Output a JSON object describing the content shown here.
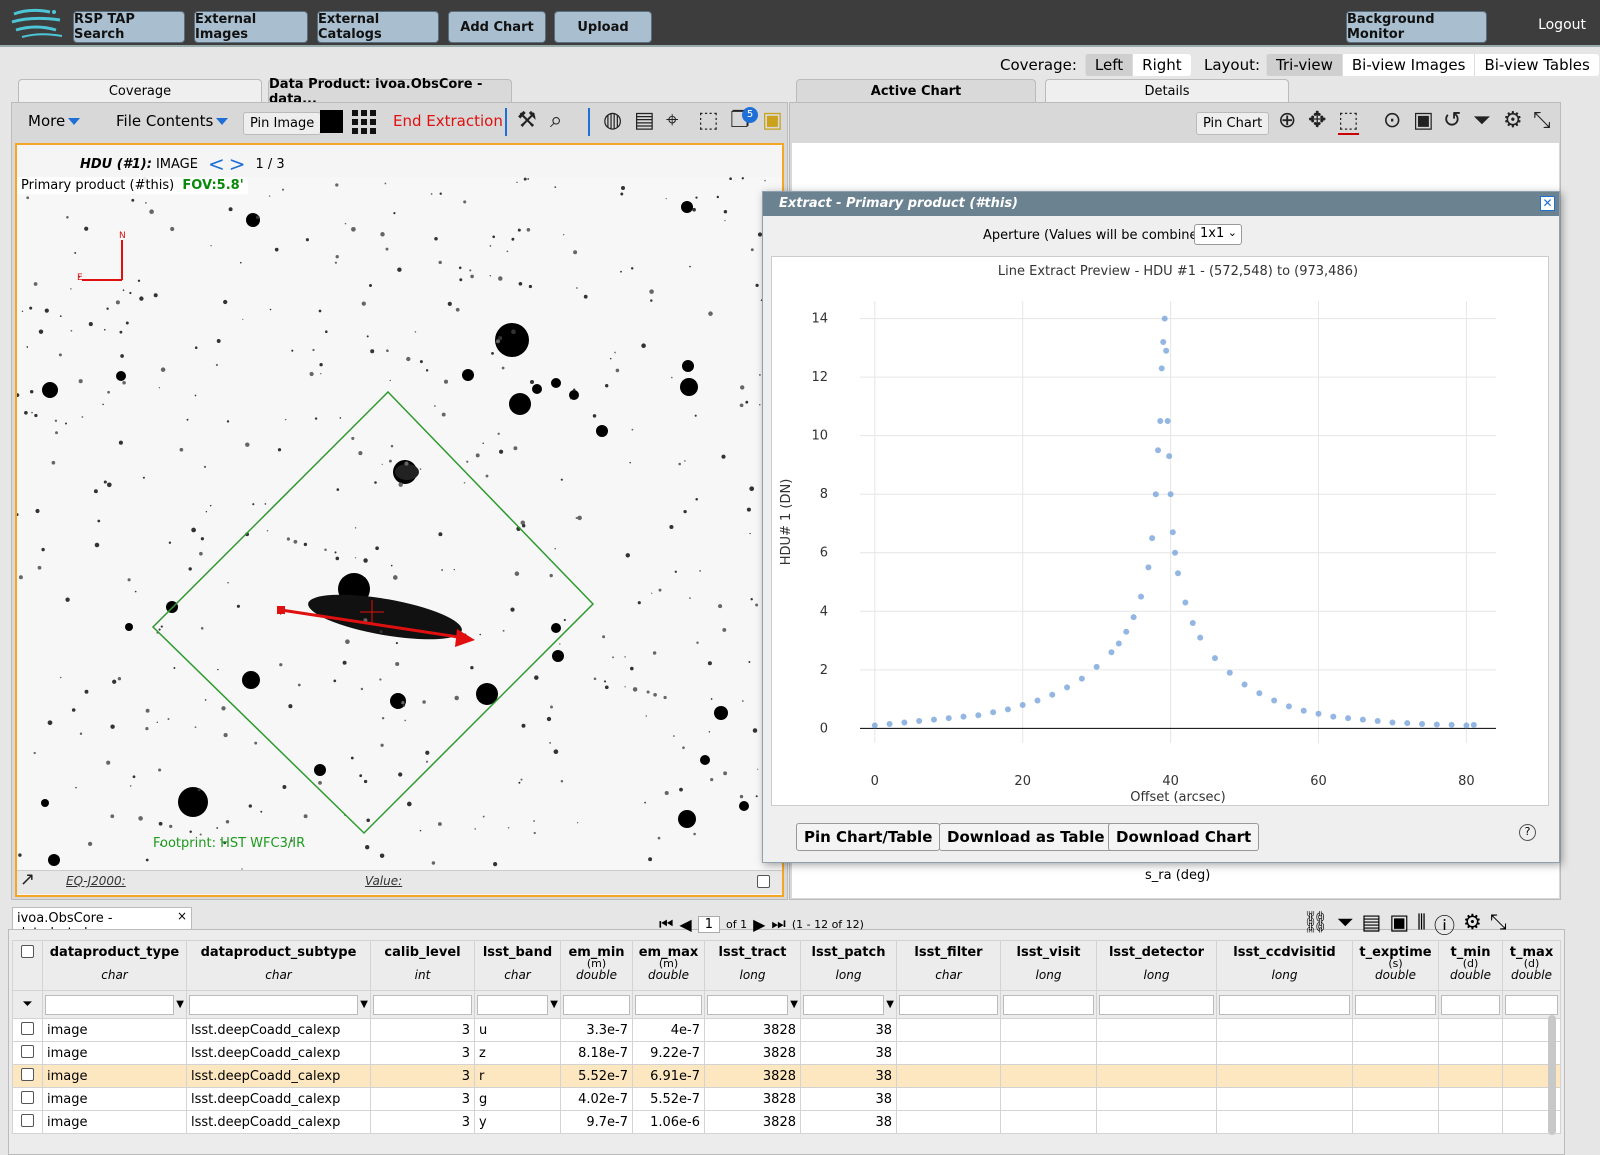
{
  "topnav": {
    "buttons": [
      "RSP TAP Search",
      "External Images",
      "External Catalogs",
      "Add Chart",
      "Upload"
    ],
    "background_monitor": "Background Monitor",
    "logout": "Logout"
  },
  "layout_bar": {
    "coverage_label": "Coverage:",
    "coverage_options": [
      "Left",
      "Right"
    ],
    "coverage_selected": "Left",
    "layout_label": "Layout:",
    "layout_options": [
      "Tri-view",
      "Bi-view Images",
      "Bi-view Tables"
    ],
    "layout_selected": "Tri-view"
  },
  "left_tabs": [
    "Coverage",
    "Data Product: ivoa.ObsCore - data..."
  ],
  "image_toolbar": {
    "more": "More",
    "file_contents": "File Contents",
    "pin_image": "Pin Image",
    "end_extraction": "End Extraction",
    "badge_count": "5"
  },
  "image_viewer": {
    "hdu_label": "HDU (#1):",
    "hdu_type": "IMAGE",
    "page": "1 / 3",
    "product_title": "Primary product (#this)",
    "fov": "FOV:5.8'",
    "compass_n": "N",
    "compass_e": "E",
    "footprint_label": "Footprint: HST WFC3/IR",
    "coord_system": "EQ-J2000:",
    "value_label": "Value:"
  },
  "right_tabs": [
    "Active Chart",
    "Details"
  ],
  "chart_toolbar": {
    "pin_chart": "Pin Chart"
  },
  "bg_axis_label": "s_ra (deg)",
  "extract_dialog": {
    "title": "Extract - Primary product (#this)",
    "aperture_label": "Aperture (Values will be combined)",
    "aperture_value": "1x1",
    "buttons": [
      "Pin Chart/Table",
      "Download as Table",
      "Download Chart"
    ],
    "help": "?"
  },
  "chart_data": {
    "type": "scatter",
    "title": "Line Extract Preview -  HDU #1 - (572,548) to (973,486)",
    "xlabel": "Offset (arcsec)",
    "ylabel": "HDU# 1 (DN)",
    "xlim": [
      -2,
      84
    ],
    "ylim": [
      -0.5,
      14.6
    ],
    "xticks": [
      0,
      20,
      40,
      60,
      80
    ],
    "yticks": [
      0,
      2,
      4,
      6,
      8,
      10,
      12,
      14
    ],
    "grid": true,
    "color": "#6f9fd8",
    "peak_x": 39,
    "peak_y": 14,
    "points": [
      [
        0,
        0.1
      ],
      [
        2,
        0.15
      ],
      [
        4,
        0.2
      ],
      [
        6,
        0.25
      ],
      [
        8,
        0.3
      ],
      [
        10,
        0.35
      ],
      [
        12,
        0.4
      ],
      [
        14,
        0.45
      ],
      [
        16,
        0.55
      ],
      [
        18,
        0.65
      ],
      [
        20,
        0.8
      ],
      [
        22,
        0.95
      ],
      [
        24,
        1.15
      ],
      [
        26,
        1.4
      ],
      [
        28,
        1.7
      ],
      [
        30,
        2.1
      ],
      [
        32,
        2.6
      ],
      [
        33,
        2.9
      ],
      [
        34,
        3.3
      ],
      [
        35,
        3.8
      ],
      [
        36,
        4.5
      ],
      [
        37,
        5.5
      ],
      [
        37.5,
        6.5
      ],
      [
        38,
        8
      ],
      [
        38.3,
        9.5
      ],
      [
        38.6,
        10.5
      ],
      [
        38.8,
        12.3
      ],
      [
        39,
        13.2
      ],
      [
        39.2,
        14
      ],
      [
        39.4,
        12.9
      ],
      [
        39.6,
        10.5
      ],
      [
        39.8,
        9.3
      ],
      [
        40,
        8
      ],
      [
        40.3,
        6.7
      ],
      [
        40.6,
        6
      ],
      [
        41,
        5.3
      ],
      [
        42,
        4.3
      ],
      [
        43,
        3.6
      ],
      [
        44,
        3.1
      ],
      [
        46,
        2.4
      ],
      [
        48,
        1.9
      ],
      [
        50,
        1.5
      ],
      [
        52,
        1.2
      ],
      [
        54,
        0.95
      ],
      [
        56,
        0.75
      ],
      [
        58,
        0.6
      ],
      [
        60,
        0.5
      ],
      [
        62,
        0.4
      ],
      [
        64,
        0.35
      ],
      [
        66,
        0.3
      ],
      [
        68,
        0.25
      ],
      [
        70,
        0.2
      ],
      [
        72,
        0.18
      ],
      [
        74,
        0.15
      ],
      [
        76,
        0.13
      ],
      [
        78,
        0.12
      ],
      [
        80,
        0.1
      ],
      [
        81,
        0.12
      ]
    ]
  },
  "table": {
    "tab_title": "ivoa.ObsCore - data.lsst.cl...",
    "page_value": "1",
    "page_of": "of 1",
    "row_range": "(1 - 12 of 12)",
    "columns": [
      {
        "name": "dataproduct_type",
        "type": "char"
      },
      {
        "name": "dataproduct_subtype",
        "type": "char"
      },
      {
        "name": "calib_level",
        "type": "int"
      },
      {
        "name": "lsst_band",
        "type": "char"
      },
      {
        "name": "em_min",
        "unit": "(m)",
        "type": "double"
      },
      {
        "name": "em_max",
        "unit": "(m)",
        "type": "double"
      },
      {
        "name": "lsst_tract",
        "type": "long"
      },
      {
        "name": "lsst_patch",
        "type": "long"
      },
      {
        "name": "lsst_filter",
        "type": "char"
      },
      {
        "name": "lsst_visit",
        "type": "long"
      },
      {
        "name": "lsst_detector",
        "type": "long"
      },
      {
        "name": "lsst_ccdvisitid",
        "type": "long"
      },
      {
        "name": "t_exptime",
        "unit": "(s)",
        "type": "double"
      },
      {
        "name": "t_min",
        "unit": "(d)",
        "type": "double"
      },
      {
        "name": "t_max",
        "unit": "(d)",
        "type": "double"
      }
    ],
    "rows": [
      [
        "image",
        "lsst.deepCoadd_calexp",
        "3",
        "u",
        "3.3e-7",
        "4e-7",
        "3828",
        "38",
        "",
        "",
        "",
        "",
        "",
        "",
        ""
      ],
      [
        "image",
        "lsst.deepCoadd_calexp",
        "3",
        "z",
        "8.18e-7",
        "9.22e-7",
        "3828",
        "38",
        "",
        "",
        "",
        "",
        "",
        "",
        ""
      ],
      [
        "image",
        "lsst.deepCoadd_calexp",
        "3",
        "r",
        "5.52e-7",
        "6.91e-7",
        "3828",
        "38",
        "",
        "",
        "",
        "",
        "",
        "",
        ""
      ],
      [
        "image",
        "lsst.deepCoadd_calexp",
        "3",
        "g",
        "4.02e-7",
        "5.52e-7",
        "3828",
        "38",
        "",
        "",
        "",
        "",
        "",
        "",
        ""
      ],
      [
        "image",
        "lsst.deepCoadd_calexp",
        "3",
        "y",
        "9.7e-7",
        "1.06e-6",
        "3828",
        "38",
        "",
        "",
        "",
        "",
        "",
        "",
        ""
      ]
    ],
    "selected_row": 2
  }
}
